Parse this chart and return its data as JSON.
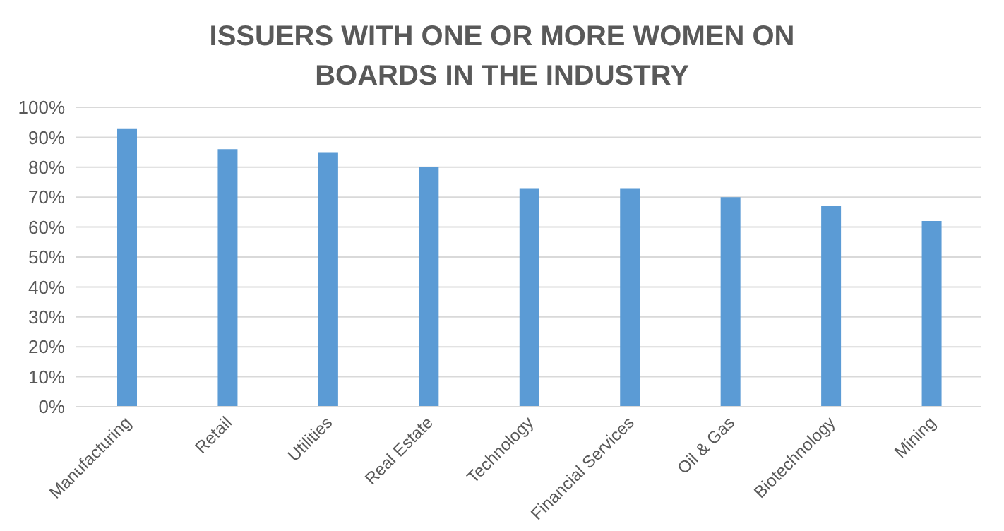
{
  "chart_data": {
    "type": "bar",
    "title": "ISSUERS WITH ONE OR MORE WOMEN ON BOARDS IN THE INDUSTRY",
    "categories": [
      "Manufacturing",
      "Retail",
      "Utilities",
      "Real Estate",
      "Technology",
      "Financial Services",
      "Oil & Gas",
      "Biotechnology",
      "Mining"
    ],
    "values": [
      93,
      86,
      85,
      80,
      73,
      73,
      70,
      67,
      62
    ],
    "color": "#5b9bd5",
    "ylim": [
      0,
      100
    ],
    "yticks": [
      {
        "value": 0,
        "label": "0%"
      },
      {
        "value": 10,
        "label": "10%"
      },
      {
        "value": 20,
        "label": "20%"
      },
      {
        "value": 30,
        "label": "30%"
      },
      {
        "value": 40,
        "label": "40%"
      },
      {
        "value": 50,
        "label": "50%"
      },
      {
        "value": 60,
        "label": "60%"
      },
      {
        "value": 70,
        "label": "70%"
      },
      {
        "value": 80,
        "label": "80%"
      },
      {
        "value": 90,
        "label": "90%"
      },
      {
        "value": 100,
        "label": "100%"
      }
    ],
    "grid": "y",
    "legend": false
  }
}
